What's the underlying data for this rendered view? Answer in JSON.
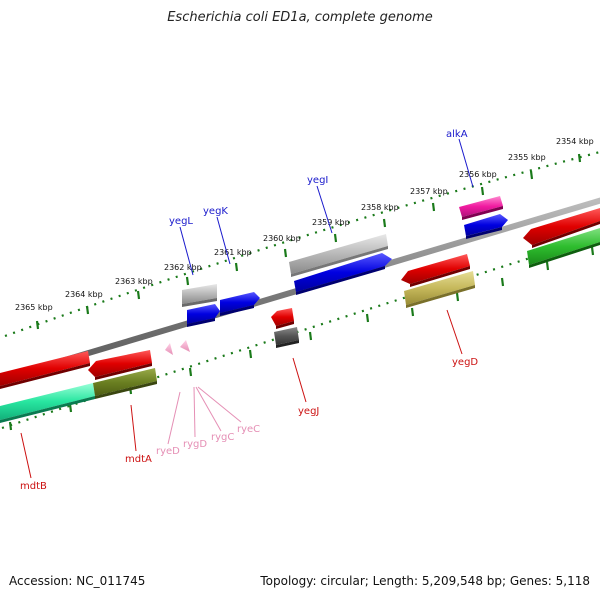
{
  "title": "Escherichia coli ED1a, complete genome",
  "footer": {
    "accession": "Accession: NC_011745",
    "summary": "Topology: circular; Length: 5,209,548 bp; Genes: 5,118"
  },
  "colors": {
    "backbone": "#888888",
    "scale_dots": "#1a7a1a",
    "forward_label": "#1a1acc",
    "reverse_label": "#cc1111",
    "rna_label": "#e58fb5"
  },
  "scale_ticks": [
    "2354 kbp",
    "2355 kbp",
    "2356 kbp",
    "2357 kbp",
    "2358 kbp",
    "2359 kbp",
    "2360 kbp",
    "2361 kbp",
    "2362 kbp",
    "2363 kbp",
    "2364 kbp",
    "2365 kbp"
  ],
  "gene_labels": {
    "forward": [
      "alkA",
      "yegI",
      "yegK",
      "yegL"
    ],
    "reverse": [
      "mdtB",
      "mdtA",
      "yegJ",
      "yegD"
    ],
    "rna": [
      "ryeD",
      "rygD",
      "rygC",
      "ryeC"
    ]
  }
}
